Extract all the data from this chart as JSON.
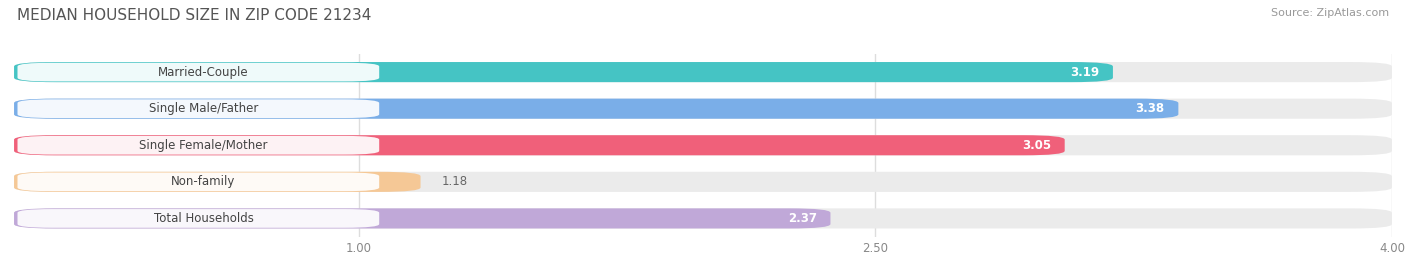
{
  "title": "MEDIAN HOUSEHOLD SIZE IN ZIP CODE 21234",
  "source": "Source: ZipAtlas.com",
  "categories": [
    "Married-Couple",
    "Single Male/Father",
    "Single Female/Mother",
    "Non-family",
    "Total Households"
  ],
  "values": [
    3.19,
    3.38,
    3.05,
    1.18,
    2.37
  ],
  "bar_colors": [
    "#45c4c4",
    "#7aaee8",
    "#f0607a",
    "#f5c896",
    "#c0a8d8"
  ],
  "bg_bar_color": "#ebebeb",
  "label_bg_color": "#ffffff",
  "xlim": [
    0.0,
    4.0
  ],
  "xticks": [
    1.0,
    2.5,
    4.0
  ],
  "xtick_labels": [
    "1.00",
    "2.50",
    "4.00"
  ],
  "background_color": "#ffffff",
  "title_fontsize": 11,
  "source_fontsize": 8,
  "cat_fontsize": 8.5,
  "value_fontsize": 8.5
}
